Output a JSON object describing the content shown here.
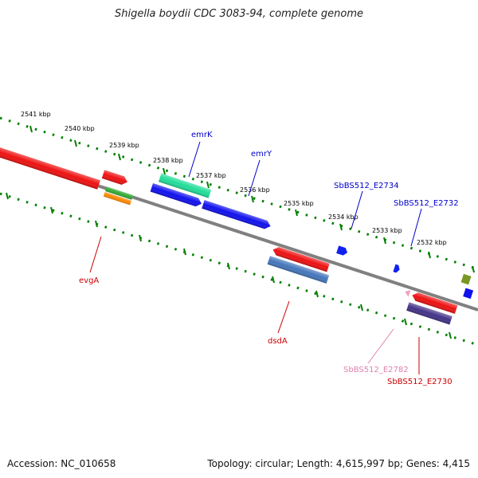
{
  "title": "Shigella boydii CDC 3083-94, complete genome",
  "footer": {
    "accession": "Accession: NC_010658",
    "topology": "Topology: circular; Length: 4,615,997 bp; Genes: 4,415"
  },
  "colors": {
    "backbone": "#808080",
    "ticks": "#008000",
    "label_blue": "#0000cc",
    "label_red": "#cc0000",
    "label_pink": "#e080b0"
  },
  "kbp_labels": [
    "2541 kbp",
    "2540 kbp",
    "2539 kbp",
    "2538 kbp",
    "2537 kbp",
    "2536 kbp",
    "2535 kbp",
    "2534 kbp",
    "2533 kbp",
    "2532 kbp"
  ],
  "genes": [
    {
      "id": "g-red-left",
      "color": "#ee1111",
      "label": ""
    },
    {
      "id": "g-red-small",
      "color": "#ee1111",
      "label": ""
    },
    {
      "id": "g-evga-green",
      "color": "#33aa33",
      "label": ""
    },
    {
      "id": "g-evga-orange",
      "color": "#ff8800",
      "label": ""
    },
    {
      "id": "g-emrk-teal",
      "color": "#22dd99",
      "label": "emrK"
    },
    {
      "id": "g-emry-blue1",
      "color": "#1111ee",
      "label": "emrY"
    },
    {
      "id": "g-blue2",
      "color": "#1111ee",
      "label": ""
    },
    {
      "id": "g-blue-small1",
      "color": "#1122ee",
      "label": "SbBS512_E2734"
    },
    {
      "id": "g-blue-small2",
      "color": "#1122ee",
      "label": "SbBS512_E2732"
    },
    {
      "id": "g-dsda-red",
      "color": "#ee1111",
      "label": ""
    },
    {
      "id": "g-dsda-steel",
      "color": "#4477bb",
      "label": ""
    },
    {
      "id": "g-pink-small",
      "color": "#f0a0c0",
      "label": ""
    },
    {
      "id": "g-red-right",
      "color": "#ee1111",
      "label": ""
    },
    {
      "id": "g-purple",
      "color": "#443388",
      "label": ""
    },
    {
      "id": "g-olive",
      "color": "#779922",
      "label": ""
    },
    {
      "id": "g-blue-edge",
      "color": "#1111ee",
      "label": ""
    }
  ],
  "lower_labels": {
    "evgA": "evgA",
    "dsdA": "dsdA",
    "e2782": "SbBS512_E2782",
    "e2730": "SbBS512_E2730"
  }
}
